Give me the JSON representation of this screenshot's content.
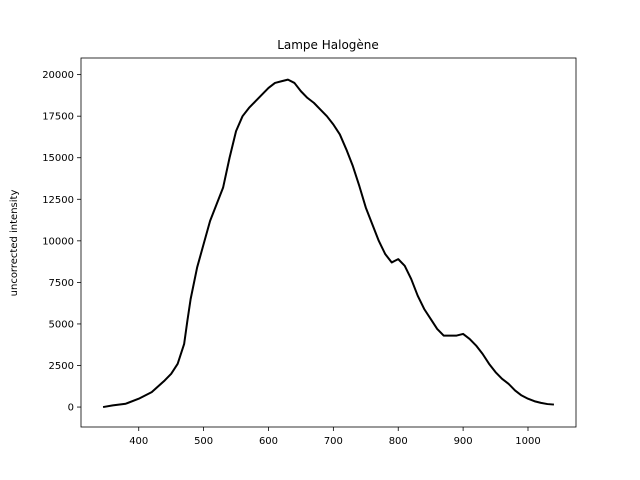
{
  "chart_data": {
    "type": "line",
    "title": "Lampe Halogène",
    "xlabel": "",
    "ylabel": "uncorrected intensity",
    "xlim": [
      311,
      1074
    ],
    "ylim": [
      -1200,
      21000
    ],
    "xticks": [
      400,
      500,
      600,
      700,
      800,
      900,
      1000
    ],
    "yticks": [
      0,
      2500,
      5000,
      7500,
      10000,
      12500,
      15000,
      17500,
      20000
    ],
    "grid": false,
    "color": "#000000",
    "series": [
      {
        "x": [
          345,
          360,
          380,
          400,
          420,
          440,
          450,
          460,
          470,
          475,
          480,
          490,
          500,
          510,
          520,
          530,
          540,
          550,
          560,
          570,
          580,
          590,
          600,
          610,
          620,
          630,
          640,
          650,
          660,
          670,
          680,
          690,
          700,
          710,
          720,
          730,
          740,
          750,
          760,
          770,
          780,
          790,
          795,
          800,
          810,
          820,
          830,
          840,
          850,
          860,
          870,
          880,
          890,
          900,
          910,
          920,
          930,
          940,
          950,
          960,
          970,
          980,
          990,
          1000,
          1010,
          1020,
          1030,
          1040
        ],
        "y": [
          0,
          100,
          200,
          500,
          900,
          1600,
          2000,
          2600,
          3800,
          5200,
          6500,
          8400,
          9800,
          11200,
          12200,
          13200,
          15000,
          16600,
          17500,
          18000,
          18400,
          18800,
          19200,
          19500,
          19600,
          19700,
          19500,
          19000,
          18600,
          18300,
          17900,
          17500,
          17000,
          16400,
          15500,
          14500,
          13300,
          12000,
          11000,
          10000,
          9200,
          8700,
          8800,
          8900,
          8500,
          7700,
          6700,
          5900,
          5300,
          4700,
          4300,
          4300,
          4300,
          4400,
          4100,
          3700,
          3200,
          2600,
          2100,
          1700,
          1400,
          1000,
          700,
          500,
          350,
          250,
          180,
          150
        ]
      }
    ]
  }
}
